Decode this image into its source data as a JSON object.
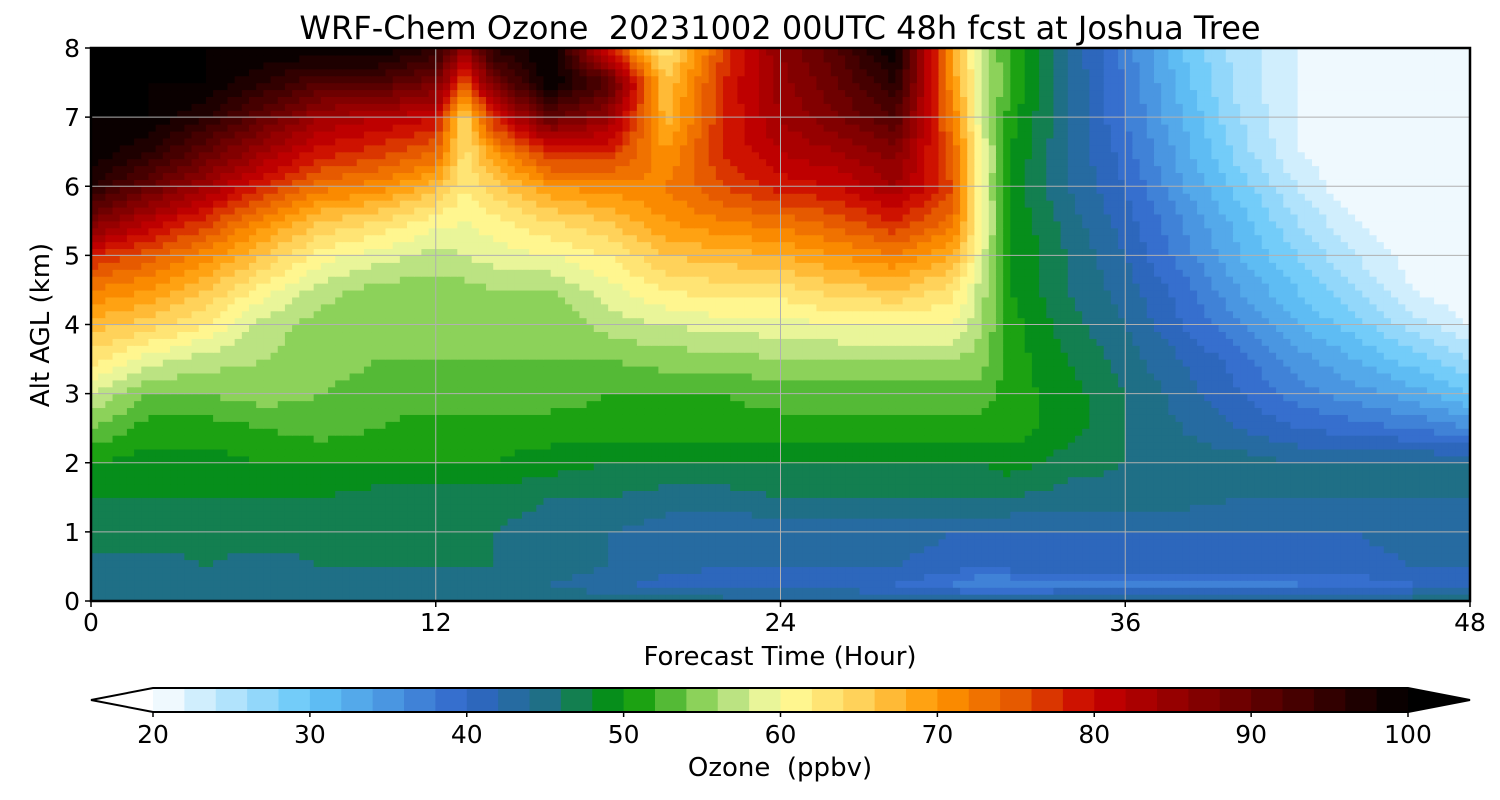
{
  "chart_data": {
    "type": "heatmap",
    "title": "WRF-Chem Ozone  20231002 00UTC 48h fcst at Joshua Tree",
    "xlabel": "Forecast Time (Hour)",
    "ylabel": "Alt AGL (km)",
    "xlim": [
      0,
      48
    ],
    "ylim": [
      0,
      8
    ],
    "xticks": [
      0,
      12,
      24,
      36,
      48
    ],
    "yticks": [
      0,
      1,
      2,
      3,
      4,
      5,
      6,
      7,
      8
    ],
    "grid": true,
    "colorbar": {
      "label": "Ozone  (ppbv)",
      "min": 20,
      "max": 100,
      "step": 2,
      "ticks": [
        20,
        30,
        40,
        50,
        60,
        70,
        80,
        90,
        100
      ],
      "extend": "both",
      "orientation": "horizontal",
      "color_stops": [
        {
          "value": 20,
          "color": "#ffffff"
        },
        {
          "value": 30,
          "color": "#63c6f8"
        },
        {
          "value": 40,
          "color": "#3165c9"
        },
        {
          "value": 45,
          "color": "#1f6f86"
        },
        {
          "value": 50,
          "color": "#009600"
        },
        {
          "value": 55,
          "color": "#8cd25a"
        },
        {
          "value": 58,
          "color": "#d2eb96"
        },
        {
          "value": 60,
          "color": "#ffff9c"
        },
        {
          "value": 65,
          "color": "#ffd25a"
        },
        {
          "value": 70,
          "color": "#ff9600"
        },
        {
          "value": 75,
          "color": "#e65a00"
        },
        {
          "value": 80,
          "color": "#c80000"
        },
        {
          "value": 90,
          "color": "#640000"
        },
        {
          "value": 100,
          "color": "#000000"
        }
      ]
    },
    "grid_x_hours": [
      0,
      2,
      4,
      6,
      8,
      10,
      12,
      13,
      14,
      16,
      18,
      20,
      22,
      24,
      26,
      28,
      30,
      31,
      32,
      34,
      36,
      38,
      40,
      42,
      44,
      46,
      48
    ],
    "grid_y_km": [
      0,
      0.25,
      0.5,
      1,
      1.5,
      2,
      2.5,
      3,
      3.5,
      4,
      4.5,
      5,
      5.5,
      6,
      6.5,
      7,
      7.5,
      8
    ],
    "ozone_ppbv": [
      [
        45,
        45,
        46,
        46,
        46,
        46,
        46,
        46,
        45,
        45,
        45,
        45,
        45,
        44,
        44,
        44,
        44,
        44,
        44,
        45,
        45,
        45,
        45,
        45,
        45,
        45,
        45
      ],
      [
        45,
        45,
        45,
        44,
        45,
        45,
        45,
        45,
        45,
        44,
        43,
        41,
        40,
        41,
        41,
        40,
        38,
        36,
        36,
        37,
        37,
        37,
        37,
        38,
        39,
        40,
        41
      ],
      [
        45,
        45,
        46,
        45,
        46,
        46,
        46,
        46,
        46,
        45,
        44,
        43,
        42,
        42,
        42,
        42,
        41,
        40,
        41,
        41,
        41,
        41,
        41,
        41,
        41,
        42,
        42
      ],
      [
        47,
        47,
        47,
        47,
        47,
        46,
        46,
        46,
        46,
        45,
        44,
        43,
        42,
        43,
        43,
        43,
        42,
        42,
        42,
        42,
        42,
        42,
        42,
        42,
        42,
        43,
        43
      ],
      [
        48,
        48,
        48,
        48,
        48,
        47,
        47,
        47,
        47,
        46,
        46,
        45,
        45,
        46,
        46,
        46,
        46,
        46,
        46,
        45,
        45,
        45,
        44,
        44,
        44,
        44,
        44
      ],
      [
        50,
        49,
        49,
        50,
        50,
        50,
        50,
        50,
        50,
        49,
        48,
        48,
        48,
        48,
        48,
        48,
        48,
        48,
        49,
        47,
        46,
        45,
        45,
        44,
        44,
        44,
        44
      ],
      [
        54,
        51,
        51,
        52,
        53,
        52,
        51,
        51,
        51,
        51,
        51,
        51,
        51,
        51,
        51,
        51,
        51,
        51,
        51,
        49,
        46,
        44,
        42,
        40,
        39,
        38,
        36
      ],
      [
        58,
        54,
        54,
        55,
        54,
        53,
        53,
        53,
        53,
        53,
        52,
        52,
        52,
        53,
        53,
        53,
        53,
        53,
        51,
        49,
        46,
        43,
        40,
        37,
        35,
        33,
        30
      ],
      [
        63,
        59,
        57,
        56,
        55,
        54,
        54,
        54,
        54,
        54,
        54,
        55,
        55,
        56,
        56,
        56,
        56,
        55,
        51,
        48,
        45,
        42,
        39,
        35,
        32,
        29,
        26
      ],
      [
        67,
        65,
        62,
        57,
        55,
        54,
        54,
        54,
        54,
        54,
        57,
        58,
        59,
        59,
        60,
        60,
        60,
        56,
        51,
        47,
        44,
        40,
        36,
        32,
        29,
        25,
        22
      ],
      [
        72,
        70,
        66,
        61,
        57,
        55,
        55,
        55,
        56,
        56,
        59,
        62,
        63,
        63,
        65,
        66,
        63,
        57,
        50,
        46,
        43,
        39,
        34,
        30,
        26,
        22,
        20
      ],
      [
        78,
        75,
        71,
        66,
        61,
        59,
        57,
        58,
        59,
        60,
        62,
        66,
        67,
        68,
        70,
        72,
        68,
        59,
        50,
        46,
        42,
        37,
        32,
        28,
        24,
        21,
        20
      ],
      [
        88,
        82,
        77,
        71,
        66,
        64,
        61,
        60,
        61,
        64,
        66,
        70,
        72,
        73,
        75,
        78,
        73,
        60,
        50,
        45,
        41,
        36,
        31,
        26,
        22,
        20,
        20
      ],
      [
        96,
        90,
        84,
        78,
        73,
        71,
        67,
        62,
        65,
        70,
        71,
        72,
        76,
        79,
        80,
        84,
        76,
        60,
        49,
        44,
        40,
        34,
        29,
        24,
        20,
        20,
        20
      ],
      [
        100,
        96,
        90,
        84,
        79,
        77,
        74,
        63,
        70,
        78,
        78,
        70,
        78,
        82,
        84,
        87,
        74,
        60,
        50,
        44,
        39,
        33,
        27,
        22,
        20,
        20,
        20
      ],
      [
        100,
        100,
        96,
        90,
        84,
        82,
        80,
        64,
        78,
        90,
        85,
        67,
        78,
        84,
        88,
        92,
        72,
        58,
        51,
        44,
        38,
        32,
        26,
        22,
        20,
        20,
        20
      ],
      [
        100,
        100,
        100,
        96,
        92,
        92,
        88,
        75,
        88,
        100,
        92,
        66,
        78,
        85,
        90,
        96,
        70,
        58,
        52,
        44,
        38,
        31,
        25,
        22,
        20,
        20,
        20
      ],
      [
        100,
        100,
        100,
        100,
        100,
        100,
        96,
        85,
        96,
        100,
        78,
        62,
        76,
        86,
        92,
        100,
        68,
        57,
        52,
        44,
        37,
        30,
        25,
        22,
        20,
        20,
        20
      ]
    ]
  }
}
